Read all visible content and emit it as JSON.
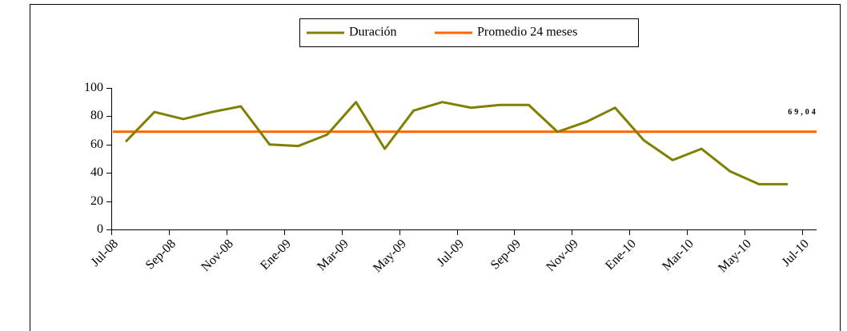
{
  "chart_data": {
    "type": "line",
    "x": [
      0.5,
      1.5,
      2.5,
      3.5,
      4.5,
      5.5,
      6.5,
      7.5,
      8.5,
      9.5,
      10.5,
      11.5,
      12.5,
      13.5,
      14.5,
      15.5,
      16.5,
      17.5,
      18.5,
      19.5,
      20.5,
      21.5,
      22.5,
      23.5
    ],
    "series": [
      {
        "name": "Duración",
        "color": "#808000",
        "values": [
          62,
          83,
          78,
          83,
          87,
          60,
          59,
          67,
          90,
          57,
          84,
          90,
          86,
          88,
          88,
          69,
          76,
          86,
          63,
          49,
          57,
          41,
          32,
          32
        ]
      }
    ],
    "reference_line": {
      "name": "Promedio 24 meses",
      "color": "#ff6600",
      "value": 69.04,
      "value_label": "69,04"
    },
    "xlim": [
      0,
      24.5
    ],
    "xticks": [
      {
        "value": 0,
        "label": "Jul-08"
      },
      {
        "value": 2,
        "label": "Sep-08"
      },
      {
        "value": 4,
        "label": "Nov-08"
      },
      {
        "value": 6,
        "label": "Ene-09"
      },
      {
        "value": 8,
        "label": "Mar-09"
      },
      {
        "value": 10,
        "label": "May-09"
      },
      {
        "value": 12,
        "label": "Jul-09"
      },
      {
        "value": 14,
        "label": "Sep-09"
      },
      {
        "value": 16,
        "label": "Nov-09"
      },
      {
        "value": 18,
        "label": "Ene-10"
      },
      {
        "value": 20,
        "label": "Mar-10"
      },
      {
        "value": 22,
        "label": "May-10"
      },
      {
        "value": 24,
        "label": "Jul-10"
      }
    ],
    "ylim": [
      0,
      100
    ],
    "yticks": [
      0,
      20,
      40,
      60,
      80,
      100
    ],
    "grid": false,
    "legend": "top"
  }
}
